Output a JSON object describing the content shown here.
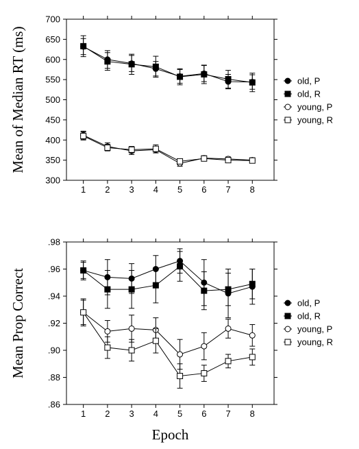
{
  "chart_data": [
    {
      "type": "line",
      "ylabel": "Mean of Median RT (ms)",
      "xlabel": "",
      "x": [
        1,
        2,
        3,
        4,
        5,
        6,
        7,
        8
      ],
      "xlim": [
        0.3,
        8.9
      ],
      "ylim": [
        300,
        700
      ],
      "yticks": [
        300,
        350,
        400,
        450,
        500,
        550,
        600,
        650,
        700
      ],
      "ytick_labels": [
        "300",
        "350",
        "400",
        "450",
        "500",
        "550",
        "600",
        "650",
        "700"
      ],
      "legend_position": "right",
      "series": [
        {
          "name": "old, P",
          "marker": "filled-circle",
          "values": [
            632,
            600,
            590,
            577,
            558,
            565,
            545,
            544
          ],
          "errors": [
            20,
            22,
            20,
            18,
            17,
            20,
            18,
            18
          ]
        },
        {
          "name": "old, R",
          "marker": "filled-square",
          "values": [
            633,
            595,
            588,
            582,
            557,
            563,
            551,
            543
          ],
          "errors": [
            26,
            22,
            25,
            26,
            20,
            23,
            22,
            23
          ]
        },
        {
          "name": "young, P",
          "marker": "open-circle",
          "values": [
            412,
            384,
            373,
            376,
            342,
            355,
            353,
            350
          ],
          "errors": [
            10,
            9,
            9,
            8,
            7,
            6,
            5,
            6
          ]
        },
        {
          "name": "young, R",
          "marker": "open-square",
          "values": [
            410,
            381,
            376,
            378,
            347,
            354,
            350,
            349
          ],
          "errors": [
            10,
            8,
            8,
            10,
            6,
            6,
            5,
            6
          ]
        }
      ]
    },
    {
      "type": "line",
      "ylabel": "Mean Prop Correct",
      "xlabel": "Epoch",
      "x": [
        1,
        2,
        3,
        4,
        5,
        6,
        7,
        8
      ],
      "xlim": [
        0.3,
        8.9
      ],
      "ylim": [
        0.86,
        0.98
      ],
      "yticks": [
        0.86,
        0.88,
        0.9,
        0.92,
        0.94,
        0.96,
        0.98
      ],
      "ytick_labels": [
        ".86",
        ".88",
        ".90",
        ".92",
        ".94",
        ".96",
        ".98"
      ],
      "legend_position": "right",
      "series": [
        {
          "name": "old, P",
          "marker": "filled-circle",
          "values": [
            0.959,
            0.954,
            0.953,
            0.96,
            0.966,
            0.95,
            0.942,
            0.947
          ],
          "errors": [
            0.007,
            0.013,
            0.011,
            0.01,
            0.009,
            0.017,
            0.018,
            0.013
          ]
        },
        {
          "name": "old, R",
          "marker": "filled-square",
          "values": [
            0.959,
            0.945,
            0.945,
            0.948,
            0.962,
            0.944,
            0.945,
            0.949
          ],
          "errors": [
            0.006,
            0.014,
            0.014,
            0.013,
            0.011,
            0.014,
            0.012,
            0.011
          ]
        },
        {
          "name": "young, P",
          "marker": "open-circle",
          "values": [
            0.928,
            0.914,
            0.916,
            0.915,
            0.897,
            0.903,
            0.916,
            0.911
          ],
          "errors": [
            0.009,
            0.008,
            0.01,
            0.009,
            0.011,
            0.01,
            0.007,
            0.008
          ]
        },
        {
          "name": "young, R",
          "marker": "open-square",
          "values": [
            0.928,
            0.902,
            0.9,
            0.907,
            0.881,
            0.883,
            0.892,
            0.895
          ],
          "errors": [
            0.01,
            0.008,
            0.008,
            0.009,
            0.009,
            0.006,
            0.005,
            0.006
          ]
        }
      ]
    }
  ]
}
